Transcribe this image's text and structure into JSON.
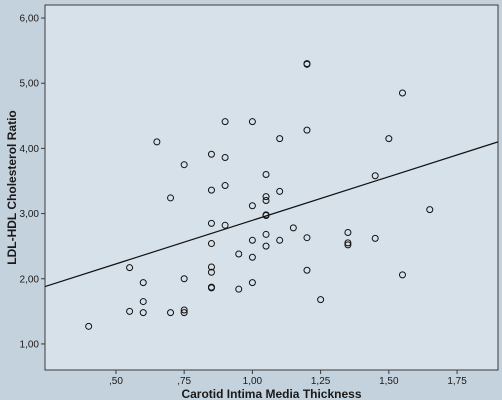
{
  "colors": {
    "page_background": "#c4d2de",
    "plot_background": "#d7e1ea",
    "plot_border": "#3a3a3a",
    "point_stroke": "#111111",
    "fit_line": "#111111"
  },
  "chart_data": {
    "type": "scatter",
    "title": "",
    "xlabel": "Carotid Intima Media Thickness",
    "ylabel": "LDL-HDL Cholesterol Ratio",
    "xlim": [
      0.24,
      1.9
    ],
    "ylim": [
      0.6,
      6.2
    ],
    "x_ticks": [
      0.5,
      0.75,
      1.0,
      1.25,
      1.5,
      1.75
    ],
    "x_tick_labels": [
      ",50",
      ",75",
      "1,00",
      "1,25",
      "1,50",
      "1,75"
    ],
    "y_ticks": [
      1.0,
      2.0,
      3.0,
      4.0,
      5.0,
      6.0
    ],
    "y_tick_labels": [
      "1,00",
      "2,00",
      "3,00",
      "4,00",
      "5,00",
      "6,00"
    ],
    "grid": false,
    "fit_line": {
      "x": [
        0.24,
        1.9
      ],
      "y": [
        1.88,
        4.1
      ]
    },
    "x": [
      0.4,
      0.55,
      0.55,
      0.6,
      0.6,
      0.6,
      0.65,
      0.7,
      0.7,
      0.75,
      0.75,
      0.75,
      0.75,
      0.85,
      0.85,
      0.85,
      0.85,
      0.85,
      0.85,
      0.85,
      0.85,
      0.85,
      0.9,
      0.9,
      0.9,
      0.9,
      0.95,
      0.95,
      1.0,
      1.0,
      1.0,
      1.0,
      1.0,
      1.05,
      1.05,
      1.05,
      1.05,
      1.05,
      1.05,
      1.05,
      1.1,
      1.1,
      1.1,
      1.15,
      1.2,
      1.2,
      1.2,
      1.2,
      1.2,
      1.25,
      1.35,
      1.35,
      1.35,
      1.45,
      1.45,
      1.5,
      1.55,
      1.55,
      1.65
    ],
    "y": [
      1.27,
      2.17,
      1.5,
      1.94,
      1.65,
      1.48,
      4.1,
      3.24,
      1.48,
      3.75,
      2.0,
      1.52,
      1.48,
      3.91,
      3.36,
      2.85,
      2.54,
      2.18,
      2.1,
      1.87,
      1.87,
      1.86,
      4.41,
      3.86,
      3.43,
      2.82,
      2.38,
      1.84,
      4.41,
      3.12,
      2.59,
      2.33,
      1.94,
      3.6,
      3.26,
      3.2,
      2.98,
      2.97,
      2.68,
      2.5,
      4.15,
      3.34,
      2.59,
      2.78,
      5.3,
      5.29,
      4.28,
      2.63,
      2.13,
      1.68,
      2.71,
      2.55,
      2.52,
      3.58,
      2.62,
      4.15,
      4.85,
      2.06,
      3.06
    ]
  }
}
